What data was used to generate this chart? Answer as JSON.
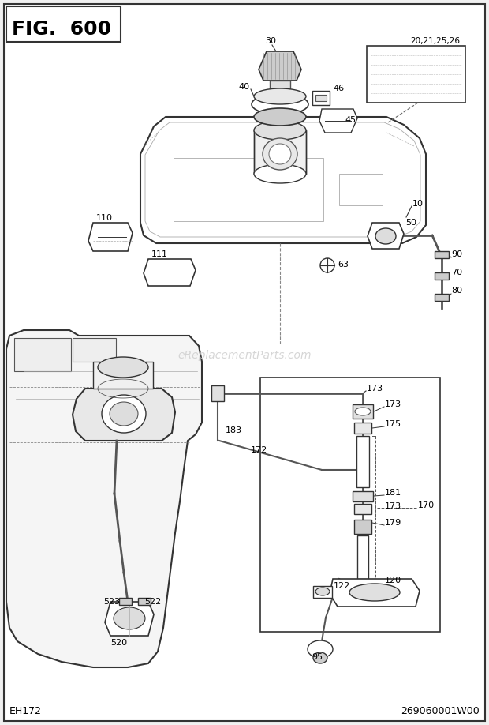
{
  "title": "FIG. 600",
  "footer_left": "EH172",
  "footer_right": "269060001W00",
  "watermark": "eReplacementParts.com",
  "bg_color": "#f0f0f0",
  "border_color": "#333333",
  "text_color": "#000000",
  "line_color": "#333333",
  "fig_size": [
    6.2,
    9.18
  ],
  "dpi": 100
}
